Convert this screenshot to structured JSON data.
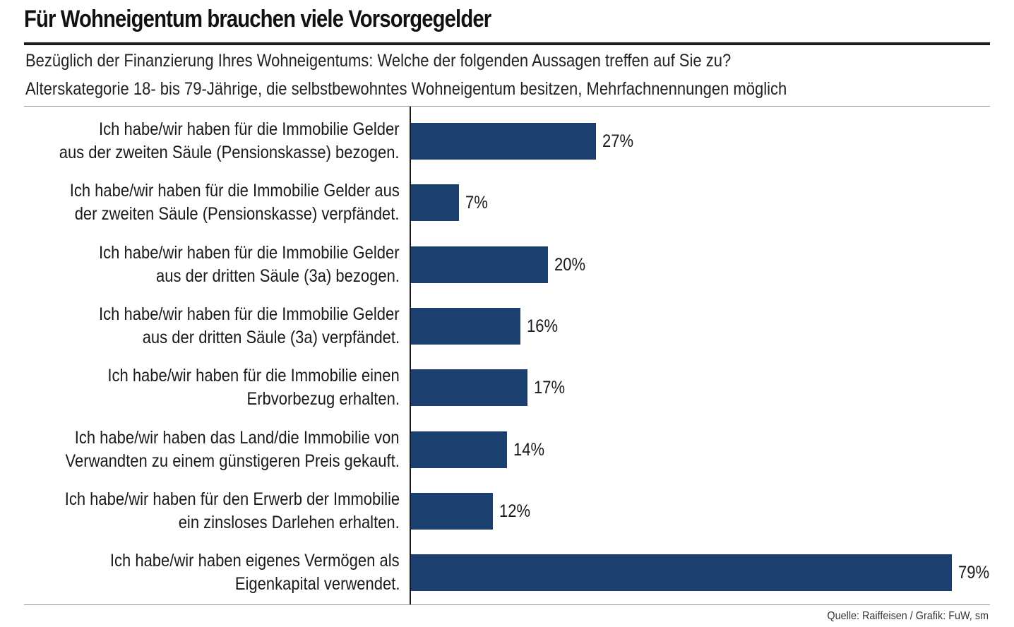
{
  "title": "Für Wohneigentum brauchen viele Vorsorgegelder",
  "subtitle_line1": "Bezüglich der Finanzierung Ihres Wohneigentums: Welche der folgenden Aussagen treffen auf Sie zu?",
  "subtitle_line2": "Alterskategorie 18- bis 79-Jährige, die selbstbewohntes Wohneigentum besitzen, Mehrfachnennungen möglich",
  "source": "Quelle: Raiffeisen / Grafik: FuW, sm",
  "colors": {
    "bar": "#1b3f6e",
    "rule": "#1a1a1a"
  },
  "chart_data": {
    "type": "bar",
    "orientation": "horizontal",
    "categories": [
      [
        "Ich habe/wir haben für die Immobilie Gelder",
        "aus der zweiten Säule (Pensionskasse) bezogen."
      ],
      [
        "Ich habe/wir haben für die Immobilie Gelder aus",
        "der zweiten Säule (Pensionskasse) verpfändet."
      ],
      [
        "Ich habe/wir haben für die Immobilie Gelder",
        "aus der dritten Säule (3a) bezogen."
      ],
      [
        "Ich habe/wir haben für die Immobilie Gelder",
        "aus der dritten Säule (3a) verpfändet."
      ],
      [
        "Ich habe/wir haben für die Immobilie einen",
        "Erbvorbezug erhalten."
      ],
      [
        "Ich habe/wir haben das Land/die Immobilie von",
        "Verwandten zu einem günstigeren Preis gekauft."
      ],
      [
        "Ich habe/wir haben für den Erwerb der Immobilie",
        "ein zinsloses Darlehen erhalten."
      ],
      [
        "Ich habe/wir haben eigenes Vermögen als",
        "Eigenkapital verwendet."
      ]
    ],
    "values": [
      27,
      7,
      20,
      16,
      17,
      14,
      12,
      79
    ],
    "value_labels": [
      "27%",
      "7%",
      "20%",
      "16%",
      "17%",
      "14%",
      "12%",
      "79%"
    ],
    "unit": "%",
    "xlim": [
      0,
      79
    ],
    "grid": false,
    "legend": "none"
  }
}
